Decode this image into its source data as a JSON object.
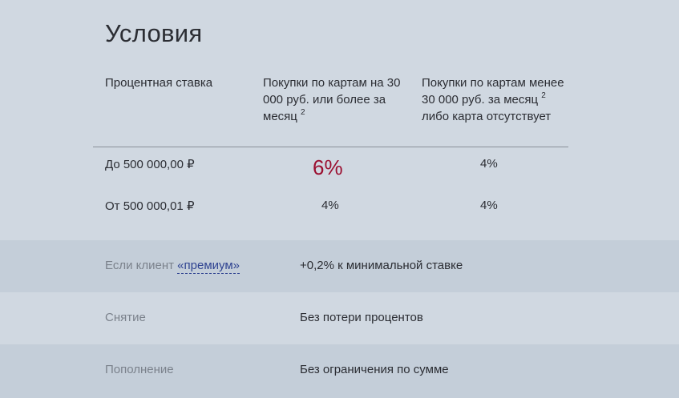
{
  "section": {
    "title": "Условия"
  },
  "table": {
    "headers": {
      "col1": "Процентная ставка",
      "col2_main": "Покупки по картам на 30 000 руб. или более за месяц",
      "col2_sup": "2",
      "col3_part1": "Покупки по картам менее 30 000 руб. за месяц",
      "col3_sup": "2",
      "col3_part2": " либо карта отсутствует"
    },
    "rows": [
      {
        "range": "До 500 000,00 ₽",
        "rate_30k_plus": "6%",
        "rate_under_30k": "4%"
      },
      {
        "range": "От 500 000,01 ₽",
        "rate_30k_plus": "4%",
        "rate_under_30k": "4%"
      }
    ]
  },
  "conditions": [
    {
      "label_prefix": "Если клиент ",
      "label_link": "«премиум»",
      "value": "+0,2% к минимальной ставке"
    },
    {
      "label": "Снятие",
      "value": "Без потери процентов"
    },
    {
      "label": "Пополнение",
      "value": "Без ограничения по сумме"
    }
  ],
  "colors": {
    "background": "#d0d8e1",
    "band_alt": "#c4ced9",
    "accent_rate": "#9b0f30",
    "link": "#2f4391"
  }
}
